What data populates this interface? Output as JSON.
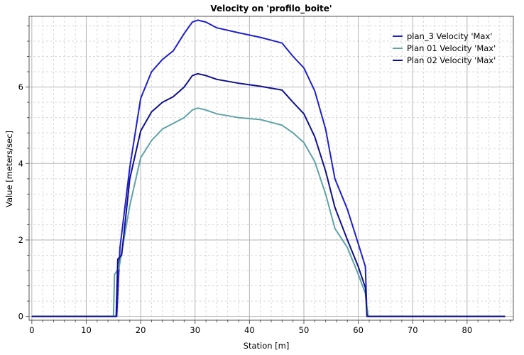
{
  "chart_data": {
    "type": "line",
    "title": "Velocity on 'profilo_boite'",
    "xlabel": "Station [m]",
    "ylabel": "Value [meters/sec]",
    "xlim": [
      -0.5,
      88.5
    ],
    "ylim": [
      -0.1,
      7.85
    ],
    "xticks": [
      0,
      10,
      20,
      30,
      40,
      50,
      60,
      70,
      80
    ],
    "yticks": [
      0,
      2,
      4,
      6
    ],
    "grid": true,
    "legend_position": "top-right",
    "series": [
      {
        "name": "plan_3 Velocity 'Max'",
        "color": "#1f1fd1",
        "x": [
          0,
          15.2,
          15.6,
          16.2,
          18.0,
          20.0,
          22.0,
          24.0,
          26.0,
          28.0,
          29.5,
          30.5,
          32.0,
          34.0,
          38.0,
          42.0,
          46.0,
          48.0,
          50.0,
          52.0,
          54.0,
          55.7,
          58.0,
          60.0,
          61.3,
          61.6,
          87.0
        ],
        "y": [
          0,
          0,
          0,
          1.8,
          3.9,
          5.7,
          6.4,
          6.72,
          6.95,
          7.4,
          7.7,
          7.75,
          7.7,
          7.55,
          7.42,
          7.3,
          7.15,
          6.8,
          6.5,
          5.9,
          4.9,
          3.6,
          2.8,
          1.9,
          1.3,
          0,
          0
        ]
      },
      {
        "name": "Plan 01 Velocity 'Max'",
        "color": "#5fa3a8",
        "x": [
          0,
          15.0,
          15.2,
          16.0,
          18.0,
          20.0,
          22.0,
          24.0,
          26.0,
          28.0,
          29.5,
          30.5,
          32.0,
          34.0,
          38.0,
          42.0,
          46.0,
          48.0,
          50.0,
          52.0,
          54.0,
          55.7,
          58.0,
          60.0,
          61.3,
          61.8,
          87.0
        ],
        "y": [
          0,
          0,
          1.1,
          1.25,
          2.9,
          4.15,
          4.6,
          4.9,
          5.05,
          5.2,
          5.4,
          5.45,
          5.4,
          5.3,
          5.2,
          5.15,
          5.0,
          4.8,
          4.55,
          4.05,
          3.2,
          2.3,
          1.8,
          1.1,
          0.6,
          0,
          0
        ]
      },
      {
        "name": "Plan 02 Velocity 'Max'",
        "color": "#101090",
        "x": [
          0,
          15.5,
          15.8,
          16.5,
          18.0,
          20.0,
          22.0,
          24.0,
          26.0,
          28.0,
          29.5,
          30.5,
          32.0,
          34.0,
          38.0,
          42.0,
          46.0,
          48.0,
          50.0,
          52.0,
          54.0,
          55.7,
          58.0,
          60.0,
          61.3,
          61.6,
          87.0
        ],
        "y": [
          0,
          0,
          1.5,
          1.6,
          3.6,
          4.85,
          5.35,
          5.6,
          5.75,
          6.0,
          6.3,
          6.35,
          6.3,
          6.2,
          6.1,
          6.02,
          5.92,
          5.6,
          5.3,
          4.7,
          3.8,
          2.85,
          2.0,
          1.3,
          0.75,
          0,
          0
        ]
      }
    ]
  }
}
